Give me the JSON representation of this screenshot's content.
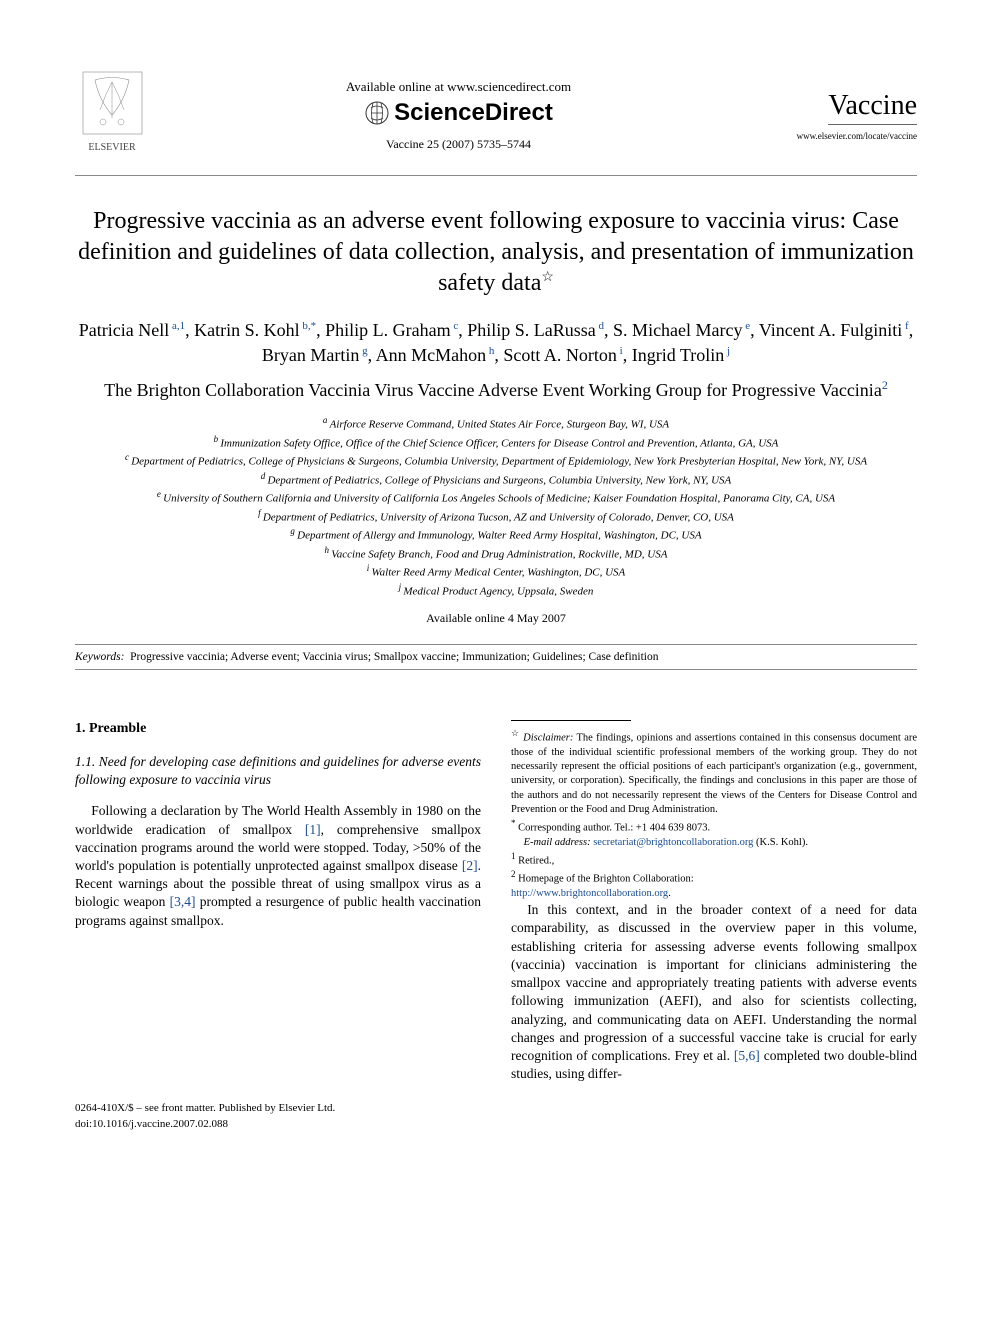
{
  "header": {
    "available_text": "Available online at www.sciencedirect.com",
    "sciencedirect": "ScienceDirect",
    "journal_ref": "Vaccine 25 (2007) 5735–5744",
    "journal_name": "Vaccine",
    "journal_url": "www.elsevier.com/locate/vaccine",
    "elsevier_label": "ELSEVIER"
  },
  "title": "Progressive vaccinia as an adverse event following exposure to vaccinia virus: Case definition and guidelines of data collection, analysis, and presentation of immunization safety data",
  "title_star": "☆",
  "authors": [
    {
      "name": "Patricia Nell",
      "sup": "a,1"
    },
    {
      "name": "Katrin S. Kohl",
      "sup": "b,*"
    },
    {
      "name": "Philip L. Graham",
      "sup": "c"
    },
    {
      "name": "Philip S. LaRussa",
      "sup": "d"
    },
    {
      "name": "S. Michael Marcy",
      "sup": "e"
    },
    {
      "name": "Vincent A. Fulginiti",
      "sup": "f"
    },
    {
      "name": "Bryan Martin",
      "sup": "g"
    },
    {
      "name": "Ann McMahon",
      "sup": "h"
    },
    {
      "name": "Scott A. Norton",
      "sup": "i"
    },
    {
      "name": "Ingrid Trolin",
      "sup": "j"
    }
  ],
  "working_group": "The Brighton Collaboration Vaccinia Virus Vaccine Adverse Event Working Group for Progressive Vaccinia",
  "working_group_sup": "2",
  "affiliations": [
    {
      "key": "a",
      "text": "Airforce Reserve Command, United States Air Force, Sturgeon Bay, WI, USA"
    },
    {
      "key": "b",
      "text": "Immunization Safety Office, Office of the Chief Science Officer, Centers for Disease Control and Prevention, Atlanta, GA, USA"
    },
    {
      "key": "c",
      "text": "Department of Pediatrics, College of Physicians & Surgeons, Columbia University, Department of Epidemiology, New York Presbyterian Hospital, New York, NY, USA"
    },
    {
      "key": "d",
      "text": "Department of Pediatrics, College of Physicians and Surgeons, Columbia University, New York, NY, USA"
    },
    {
      "key": "e",
      "text": "University of Southern California and University of California Los Angeles Schools of Medicine; Kaiser Foundation Hospital, Panorama City, CA, USA"
    },
    {
      "key": "f",
      "text": "Department of Pediatrics, University of Arizona Tucson, AZ and University of Colorado, Denver, CO, USA"
    },
    {
      "key": "g",
      "text": "Department of Allergy and Immunology, Walter Reed Army Hospital, Washington, DC, USA"
    },
    {
      "key": "h",
      "text": "Vaccine Safety Branch, Food and Drug Administration, Rockville, MD, USA"
    },
    {
      "key": "i",
      "text": "Walter Reed Army Medical Center, Washington, DC, USA"
    },
    {
      "key": "j",
      "text": "Medical Product Agency, Uppsala, Sweden"
    }
  ],
  "available_online": "Available online 4 May 2007",
  "keywords_label": "Keywords:",
  "keywords": "Progressive vaccinia; Adverse event; Vaccinia virus; Smallpox vaccine; Immunization; Guidelines; Case definition",
  "section1": {
    "heading": "1. Preamble",
    "sub_heading": "1.1. Need for developing case definitions and guidelines for adverse events following exposure to vaccinia virus",
    "para1_a": "Following a declaration by The World Health Assembly in 1980 on the worldwide eradication of smallpox ",
    "para1_ref1": "[1]",
    "para1_b": ", comprehensive smallpox vaccination programs around the world were stopped. Today, >50% of the world's population is potentially unprotected against smallpox disease ",
    "para1_ref2": "[2]",
    "para1_c": ". Recent warnings about the possible threat of using smallpox virus as a biologic weapon ",
    "para1_ref3": "[3,4]",
    "para1_d": " prompted a resurgence of public health vaccination programs against smallpox.",
    "para2_a": "In this context, and in the broader context of a need for data comparability, as discussed in the overview paper in this volume, establishing criteria for assessing adverse events following smallpox (vaccinia) vaccination is important for clinicians administering the smallpox vaccine and appropriately treating patients with adverse events following immunization (AEFI), and also for scientists collecting, analyzing, and communicating data on AEFI. Understanding the normal changes and progression of a successful vaccine take is crucial for early recognition of complications. Frey et al. ",
    "para2_ref1": "[5,6]",
    "para2_b": " completed two double-blind studies, using differ-"
  },
  "footnotes": {
    "disclaimer_star": "☆",
    "disclaimer_label": "Disclaimer:",
    "disclaimer_text": " The findings, opinions and assertions contained in this consensus document are those of the individual scientific professional members of the working group. They do not necessarily represent the official positions of each participant's organization (e.g., government, university, or corporation). Specifically, the findings and conclusions in this paper are those of the authors and do not necessarily represent the views of the Centers for Disease Control and Prevention or the Food and Drug Administration.",
    "corr_star": "*",
    "corr_text": " Corresponding author. Tel.: +1 404 639 8073.",
    "email_label": "E-mail address:",
    "email": "secretariat@brightoncollaboration.org",
    "email_person": " (K.S. Kohl).",
    "fn1_sup": "1",
    "fn1_text": " Retired.,",
    "fn2_sup": "2",
    "fn2_text": " Homepage of the Brighton Collaboration:",
    "fn2_url": "http://www.brightoncollaboration.org"
  },
  "footer": {
    "line1": "0264-410X/$ – see front matter. Published by Elsevier Ltd.",
    "line2": "doi:10.1016/j.vaccine.2007.02.088"
  },
  "colors": {
    "link": "#1a4d8f",
    "text": "#000000",
    "rule": "#888888"
  }
}
